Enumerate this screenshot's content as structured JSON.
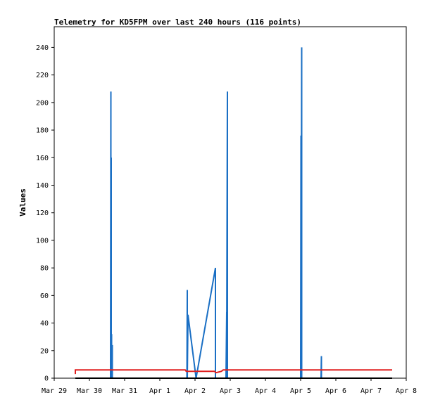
{
  "chart_data": {
    "type": "line",
    "title": "Telemetry for KD5FPM over last 240 hours (116 points)",
    "ylabel": "Values",
    "xlabel": "",
    "ylim": [
      0,
      255
    ],
    "xlim": [
      0,
      10
    ],
    "yticks": [
      0,
      20,
      40,
      60,
      80,
      100,
      120,
      140,
      160,
      180,
      200,
      220,
      240
    ],
    "xticks": [
      {
        "label": "Mar 29",
        "x": 0
      },
      {
        "label": "Mar 30",
        "x": 1
      },
      {
        "label": "Mar 31",
        "x": 2
      },
      {
        "label": "Apr 1",
        "x": 3
      },
      {
        "label": "Apr 2",
        "x": 4
      },
      {
        "label": "Apr 3",
        "x": 5
      },
      {
        "label": "Apr 4",
        "x": 6
      },
      {
        "label": "Apr 5",
        "x": 7
      },
      {
        "label": "Apr 6",
        "x": 8
      },
      {
        "label": "Apr 7",
        "x": 9
      },
      {
        "label": "Apr 8",
        "x": 10
      }
    ],
    "series": [
      {
        "color": "#1a6fc4",
        "points": [
          [
            1.6,
            0
          ],
          [
            1.61,
            208
          ],
          [
            1.61,
            0
          ],
          [
            1.62,
            160
          ],
          [
            1.62,
            0
          ],
          [
            1.63,
            32
          ],
          [
            1.63,
            0
          ],
          [
            1.65,
            24
          ],
          [
            1.65,
            0
          ],
          [
            3.77,
            0
          ],
          [
            3.78,
            64
          ],
          [
            3.78,
            0
          ],
          [
            3.8,
            46
          ],
          [
            4.03,
            0
          ],
          [
            4.58,
            80
          ],
          [
            4.58,
            0
          ],
          [
            4.88,
            0
          ],
          [
            4.9,
            48
          ],
          [
            4.9,
            25
          ],
          [
            4.92,
            208
          ],
          [
            4.92,
            0
          ],
          [
            7.0,
            0
          ],
          [
            7.01,
            176
          ],
          [
            7.01,
            0
          ],
          [
            7.03,
            240
          ],
          [
            7.03,
            0
          ],
          [
            7.58,
            0
          ],
          [
            7.59,
            16
          ],
          [
            7.59,
            0
          ]
        ]
      },
      {
        "color": "#e02020",
        "points": [
          [
            0.6,
            3
          ],
          [
            0.6,
            6
          ],
          [
            3.72,
            6
          ],
          [
            3.75,
            5
          ],
          [
            4.55,
            5
          ],
          [
            4.6,
            4
          ],
          [
            4.75,
            5
          ],
          [
            4.8,
            6
          ],
          [
            9.6,
            6
          ]
        ]
      },
      {
        "color": "#000000",
        "points": [
          [
            0.6,
            0
          ],
          [
            9.6,
            0
          ]
        ]
      }
    ]
  }
}
